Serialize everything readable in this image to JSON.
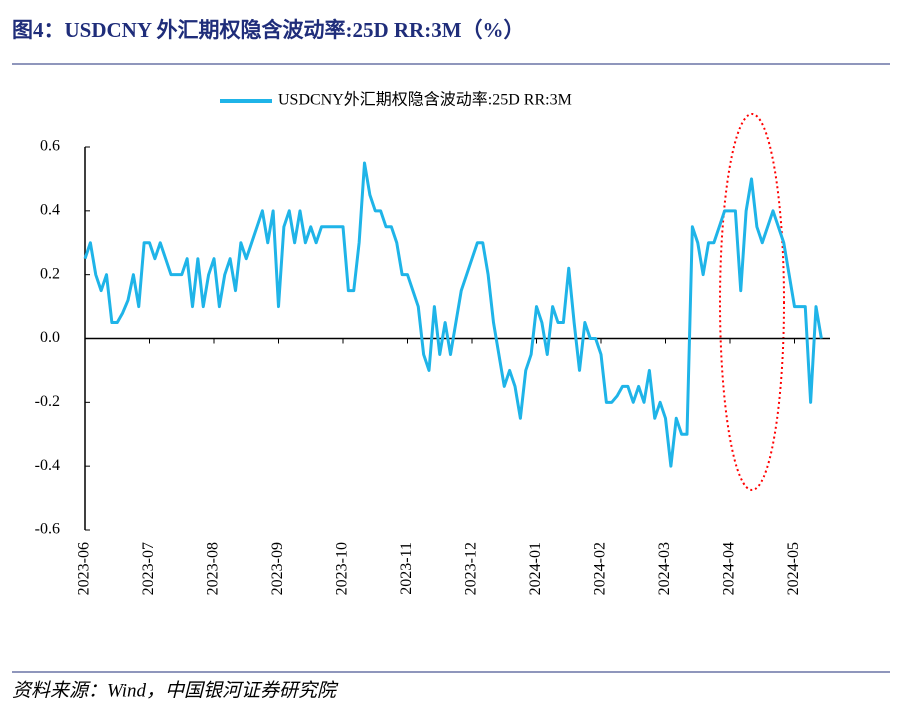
{
  "title": "图4：USDCNY 外汇期权隐含波动率:25D RR:3M（%）",
  "source": "资料来源：Wind，中国银河证券研究院",
  "chart_data": {
    "type": "line",
    "categories": [
      "2023-06",
      null,
      null,
      null,
      null,
      null,
      null,
      null,
      null,
      null,
      null,
      null,
      "2023-07",
      null,
      null,
      null,
      null,
      null,
      null,
      null,
      null,
      null,
      null,
      null,
      "2023-08",
      null,
      null,
      null,
      null,
      null,
      null,
      null,
      null,
      null,
      null,
      null,
      "2023-09",
      null,
      null,
      null,
      null,
      null,
      null,
      null,
      null,
      null,
      null,
      null,
      "2023-10",
      null,
      null,
      null,
      null,
      null,
      null,
      null,
      null,
      null,
      null,
      null,
      "2023-11",
      null,
      null,
      null,
      null,
      null,
      null,
      null,
      null,
      null,
      null,
      null,
      "2023-12",
      null,
      null,
      null,
      null,
      null,
      null,
      null,
      null,
      null,
      null,
      null,
      "2024-01",
      null,
      null,
      null,
      null,
      null,
      null,
      null,
      null,
      null,
      null,
      null,
      "2024-02",
      null,
      null,
      null,
      null,
      null,
      null,
      null,
      null,
      null,
      null,
      null,
      "2024-03",
      null,
      null,
      null,
      null,
      null,
      null,
      null,
      null,
      null,
      null,
      null,
      "2024-04",
      null,
      null,
      null,
      null,
      null,
      null,
      null,
      null,
      null,
      null,
      null,
      "2024-05",
      null,
      null,
      null,
      null,
      null
    ],
    "series": [
      {
        "name": "USDCNY外汇期权隐含波动率:25D RR:3M",
        "color": "#1fb4e8",
        "values": [
          0.25,
          0.3,
          0.2,
          0.15,
          0.2,
          0.05,
          0.05,
          0.08,
          0.12,
          0.2,
          0.1,
          0.3,
          0.3,
          0.25,
          0.3,
          0.25,
          0.2,
          0.2,
          0.2,
          0.25,
          0.1,
          0.25,
          0.1,
          0.2,
          0.25,
          0.1,
          0.2,
          0.25,
          0.15,
          0.3,
          0.25,
          0.3,
          0.35,
          0.4,
          0.3,
          0.4,
          0.1,
          0.35,
          0.4,
          0.3,
          0.4,
          0.3,
          0.35,
          0.3,
          0.35,
          0.35,
          0.35,
          0.35,
          0.35,
          0.15,
          0.15,
          0.3,
          0.55,
          0.45,
          0.4,
          0.4,
          0.35,
          0.35,
          0.3,
          0.2,
          0.2,
          0.15,
          0.1,
          -0.05,
          -0.1,
          0.1,
          -0.05,
          0.05,
          -0.05,
          0.05,
          0.15,
          0.2,
          0.25,
          0.3,
          0.3,
          0.2,
          0.05,
          -0.05,
          -0.15,
          -0.1,
          -0.15,
          -0.25,
          -0.1,
          -0.05,
          0.1,
          0.05,
          -0.05,
          0.1,
          0.05,
          0.05,
          0.22,
          0.05,
          -0.1,
          0.05,
          0.0,
          0.0,
          -0.05,
          -0.2,
          -0.2,
          -0.18,
          -0.15,
          -0.15,
          -0.2,
          -0.15,
          -0.2,
          -0.1,
          -0.25,
          -0.2,
          -0.25,
          -0.4,
          -0.25,
          -0.3,
          -0.3,
          0.35,
          0.3,
          0.2,
          0.3,
          0.3,
          0.35,
          0.4,
          0.4,
          0.4,
          0.15,
          0.4,
          0.5,
          0.35,
          0.3,
          0.35,
          0.4,
          0.35,
          0.3,
          0.2,
          0.1,
          0.1,
          0.1,
          -0.2,
          0.1,
          0.0
        ]
      }
    ],
    "ylim": [
      -0.6,
      0.6
    ],
    "yticks": [
      -0.6,
      -0.4,
      -0.2,
      {
        "value": 0,
        "label": "0.0"
      },
      0.2,
      0.4,
      0.6
    ],
    "negative_tick_color": "#ff0000",
    "legend": "top"
  }
}
